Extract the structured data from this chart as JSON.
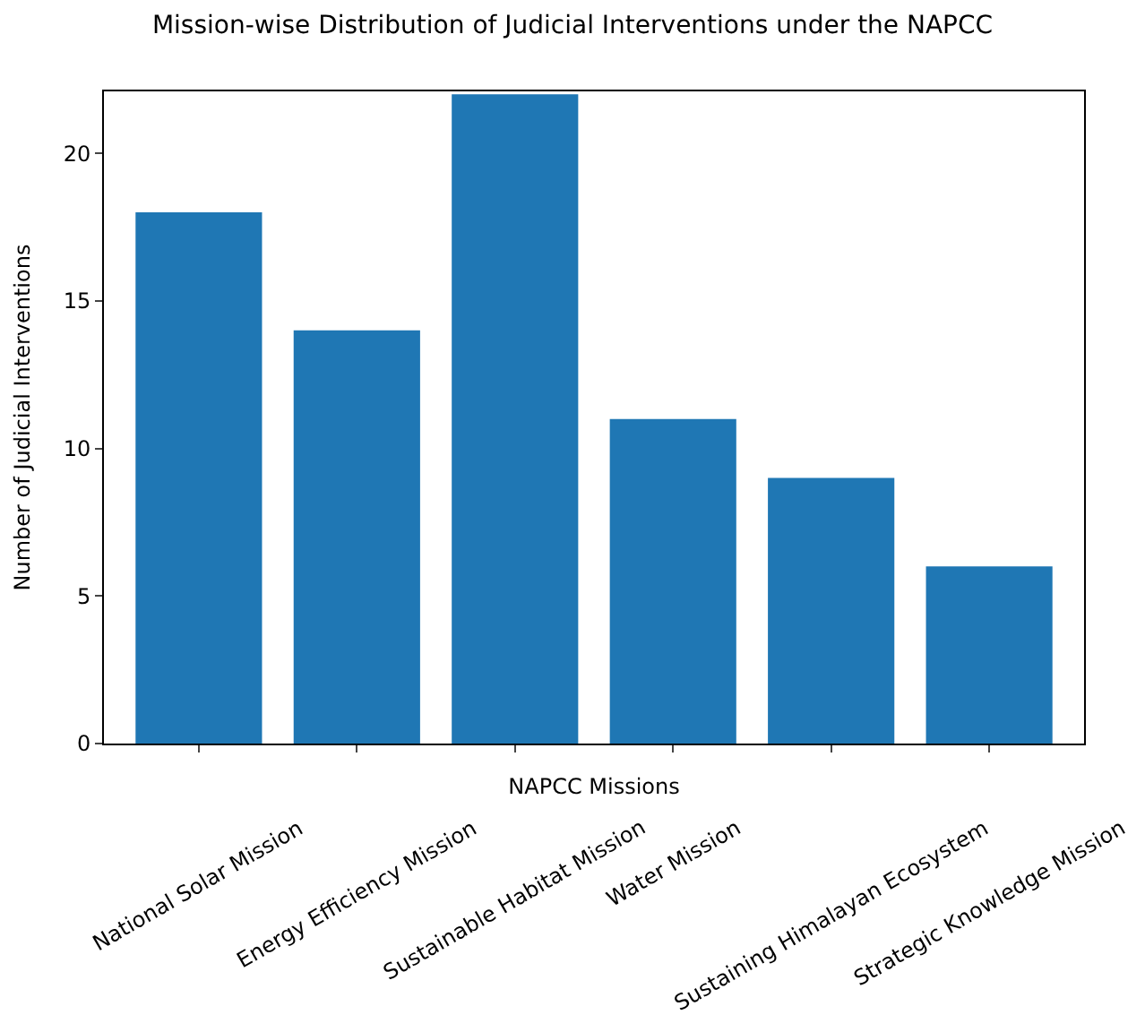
{
  "chart_data": {
    "type": "bar",
    "title": "Mission-wise Distribution of Judicial Interventions under the NAPCC",
    "xlabel": "NAPCC Missions",
    "ylabel": "Number of Judicial Interventions",
    "categories": [
      "National Solar Mission",
      "Energy Efficiency Mission",
      "Sustainable Habitat Mission",
      "Water Mission",
      "Sustaining Himalayan Ecosystem",
      "Strategic Knowledge Mission"
    ],
    "values": [
      18,
      14,
      22,
      11,
      9,
      6
    ],
    "color": "#1f77b4",
    "ylim": [
      0,
      22.1
    ],
    "yticks": [
      0,
      5,
      10,
      15,
      20
    ]
  }
}
